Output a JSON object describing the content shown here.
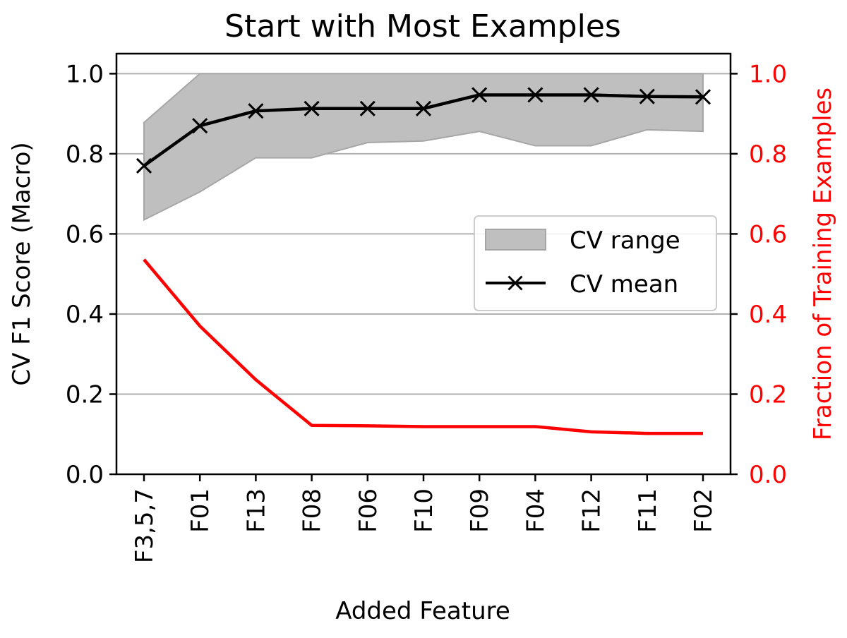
{
  "chart_data": {
    "type": "line",
    "title": "Start with Most Examples",
    "xlabel": "Added Feature",
    "ylabel": "CV F1 Score (Macro)",
    "ylabel_right": "Fraction of Training Examples",
    "categories": [
      "F3,5,7",
      "F01",
      "F13",
      "F08",
      "F06",
      "F10",
      "F09",
      "F04",
      "F12",
      "F11",
      "F02"
    ],
    "ylim": [
      0,
      1.05
    ],
    "ylim_right": [
      0,
      1.05
    ],
    "y_ticks": [
      "0.0",
      "0.2",
      "0.4",
      "0.6",
      "0.8",
      "1.0"
    ],
    "y_ticks_right": [
      "0.0",
      "0.2",
      "0.4",
      "0.6",
      "0.8",
      "1.0"
    ],
    "grid": "horizontal",
    "legend_position": "center-right",
    "cv_range": {
      "name": "CV range",
      "lower": [
        0.635,
        0.705,
        0.79,
        0.79,
        0.828,
        0.832,
        0.856,
        0.82,
        0.82,
        0.86,
        0.856
      ],
      "upper": [
        0.878,
        1.0,
        1.0,
        1.0,
        1.0,
        1.0,
        1.0,
        1.0,
        1.0,
        1.0,
        1.0
      ],
      "color": "#bfbfbf",
      "edge_color": "#a6a6a6"
    },
    "series": [
      {
        "name": "CV mean",
        "axis": "left",
        "values": [
          0.77,
          0.87,
          0.907,
          0.913,
          0.913,
          0.913,
          0.947,
          0.947,
          0.947,
          0.943,
          0.942
        ],
        "color": "#000000",
        "marker": "x"
      },
      {
        "axis": "right",
        "values": [
          0.536,
          0.37,
          0.236,
          0.122,
          0.121,
          0.119,
          0.119,
          0.119,
          0.106,
          0.102,
          0.102
        ],
        "color": "#ff0000",
        "marker": "none"
      }
    ],
    "colors": {
      "axis": "#000000",
      "grid": "#b0b0b0",
      "right_axis": "#ff0000"
    }
  }
}
